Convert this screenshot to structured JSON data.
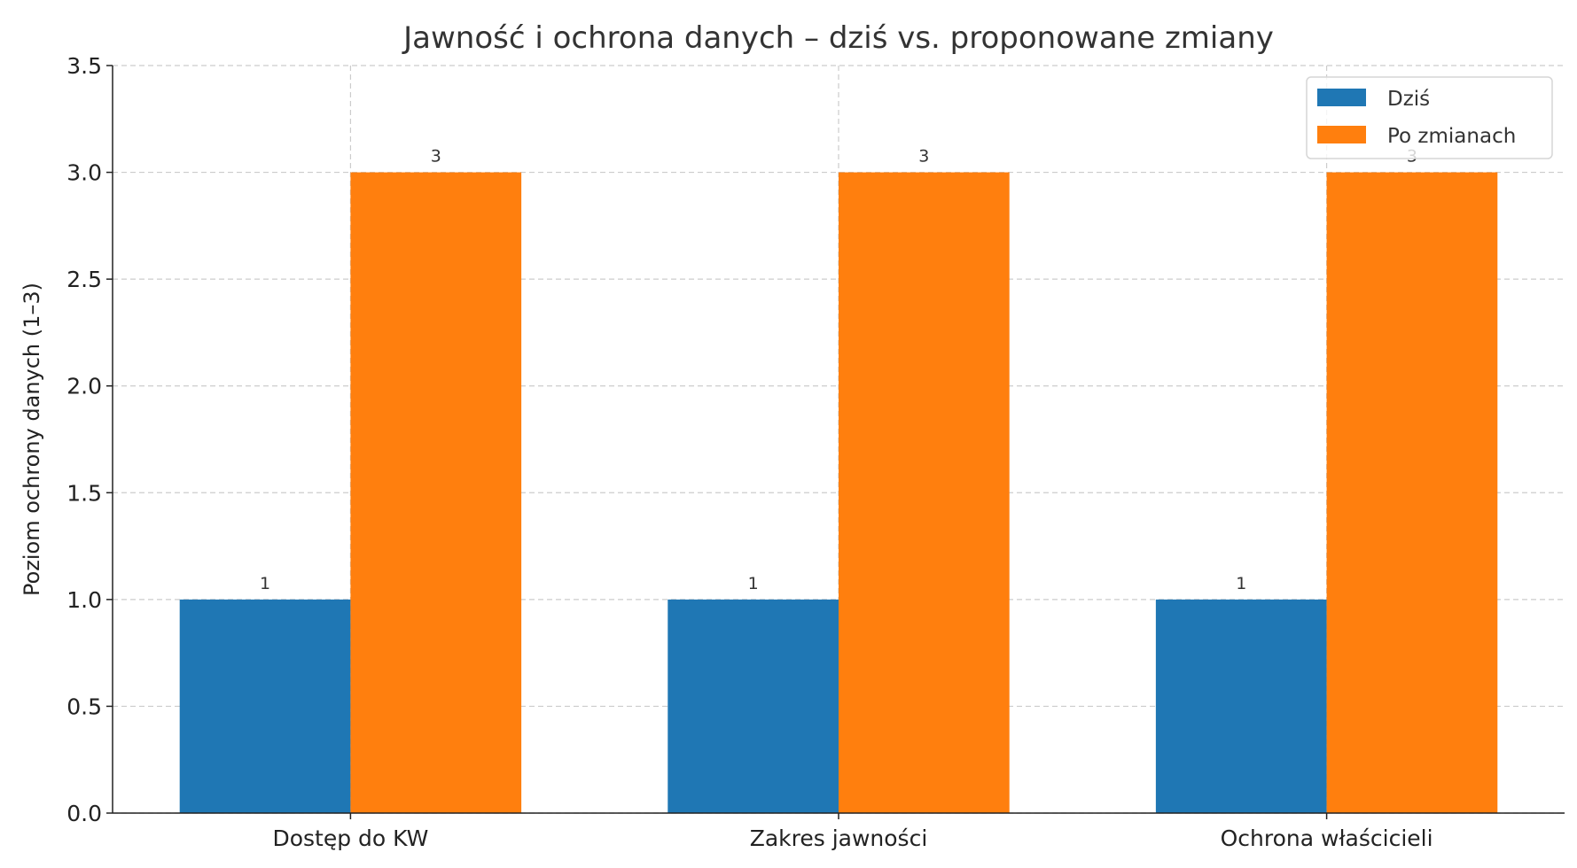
{
  "chart_data": {
    "type": "bar",
    "title": "Jawność i ochrona danych – dziś vs. proponowane zmiany",
    "xlabel": "",
    "ylabel": "Poziom ochrony danych (1–3)",
    "categories": [
      "Dostęp do KW",
      "Zakres jawności",
      "Ochrona właścicieli"
    ],
    "series": [
      {
        "name": "Dziś",
        "values": [
          1,
          1,
          1
        ],
        "color": "#1f77b4"
      },
      {
        "name": "Po zmianach",
        "values": [
          3,
          3,
          3
        ],
        "color": "#ff7f0e"
      }
    ],
    "ylim": [
      0,
      3.5
    ],
    "yticks": [
      "0.0",
      "0.5",
      "1.0",
      "1.5",
      "2.0",
      "2.5",
      "3.0",
      "3.5"
    ],
    "grid": true,
    "legend_position": "top-right"
  }
}
